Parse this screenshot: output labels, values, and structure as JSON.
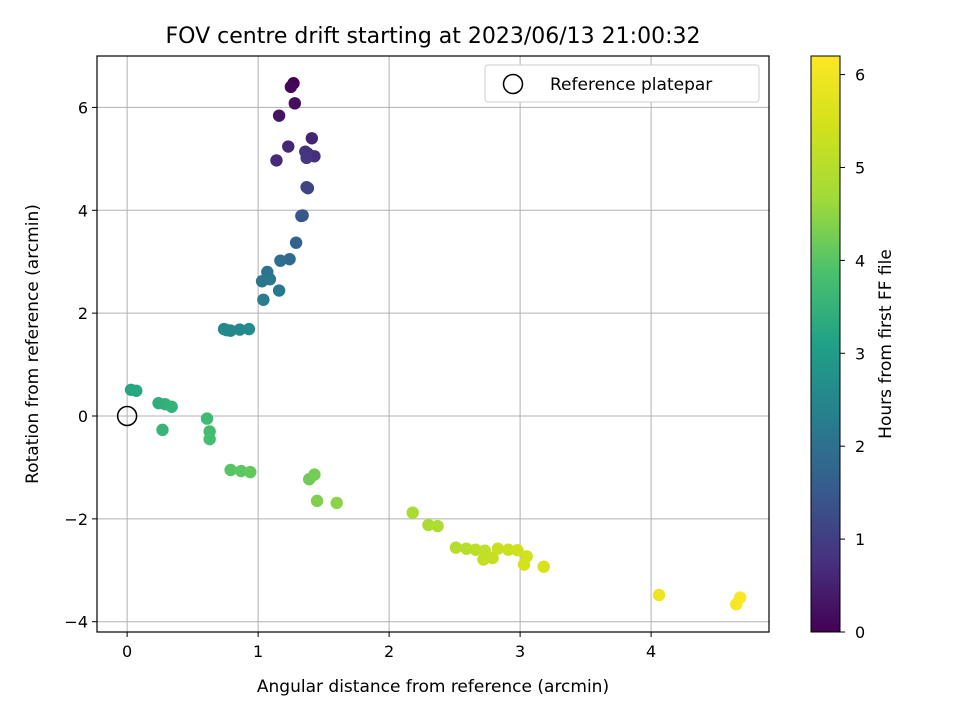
{
  "chart_data": {
    "type": "scatter",
    "title": "FOV centre drift starting at 2023/06/13 21:00:32",
    "xlabel": "Angular distance from reference (arcmin)",
    "ylabel": "Rotation from reference (arcmin)",
    "xlim": [
      -0.23,
      4.9
    ],
    "ylim": [
      -4.2,
      7.0
    ],
    "xticks": [
      0,
      1,
      2,
      3,
      4
    ],
    "yticks": [
      -4,
      -2,
      0,
      2,
      4,
      6
    ],
    "xtick_labels": [
      "0",
      "1",
      "2",
      "3",
      "4"
    ],
    "ytick_labels": [
      "−4",
      "−2",
      "0",
      "2",
      "4",
      "6"
    ],
    "grid": true,
    "legend": {
      "position": "top-right",
      "entries": [
        "Reference platepar"
      ]
    },
    "reference_point": {
      "x": 0,
      "y": 0,
      "label": "Reference platepar"
    },
    "colorbar": {
      "label": "Hours from first FF file",
      "colormap": "viridis",
      "range": [
        0,
        6.2
      ],
      "ticks": [
        0,
        1,
        2,
        3,
        4,
        5,
        6
      ],
      "tick_labels": [
        "0",
        "1",
        "2",
        "3",
        "4",
        "5",
        "6"
      ]
    },
    "points": [
      {
        "x": 1.27,
        "y": 6.47,
        "h": 0.0
      },
      {
        "x": 1.25,
        "y": 6.4,
        "h": 0.1
      },
      {
        "x": 1.28,
        "y": 6.08,
        "h": 0.2
      },
      {
        "x": 1.16,
        "y": 5.84,
        "h": 0.3
      },
      {
        "x": 1.38,
        "y": 5.1,
        "h": 0.45
      },
      {
        "x": 1.41,
        "y": 5.4,
        "h": 0.55
      },
      {
        "x": 1.23,
        "y": 5.24,
        "h": 0.6
      },
      {
        "x": 1.14,
        "y": 4.97,
        "h": 0.65
      },
      {
        "x": 1.43,
        "y": 5.05,
        "h": 0.75
      },
      {
        "x": 1.36,
        "y": 5.14,
        "h": 0.8
      },
      {
        "x": 1.37,
        "y": 5.02,
        "h": 0.85
      },
      {
        "x": 1.38,
        "y": 4.43,
        "h": 1.0
      },
      {
        "x": 1.37,
        "y": 4.45,
        "h": 1.1
      },
      {
        "x": 1.33,
        "y": 3.89,
        "h": 1.35
      },
      {
        "x": 1.34,
        "y": 3.9,
        "h": 1.45
      },
      {
        "x": 1.29,
        "y": 3.37,
        "h": 1.7
      },
      {
        "x": 1.24,
        "y": 3.05,
        "h": 1.85
      },
      {
        "x": 1.17,
        "y": 3.02,
        "h": 1.95
      },
      {
        "x": 1.07,
        "y": 2.8,
        "h": 2.05
      },
      {
        "x": 1.03,
        "y": 2.62,
        "h": 2.1
      },
      {
        "x": 1.09,
        "y": 2.66,
        "h": 2.15
      },
      {
        "x": 1.16,
        "y": 2.44,
        "h": 2.2
      },
      {
        "x": 1.04,
        "y": 2.26,
        "h": 2.25
      },
      {
        "x": 0.74,
        "y": 1.69,
        "h": 2.45
      },
      {
        "x": 0.79,
        "y": 1.66,
        "h": 2.5
      },
      {
        "x": 0.86,
        "y": 1.68,
        "h": 2.55
      },
      {
        "x": 0.93,
        "y": 1.69,
        "h": 2.6
      },
      {
        "x": 0.76,
        "y": 1.67,
        "h": 2.55
      },
      {
        "x": 0.03,
        "y": 0.51,
        "h": 3.2
      },
      {
        "x": 0.07,
        "y": 0.49,
        "h": 3.25
      },
      {
        "x": 0.24,
        "y": 0.25,
        "h": 3.4
      },
      {
        "x": 0.29,
        "y": 0.23,
        "h": 3.45
      },
      {
        "x": 0.34,
        "y": 0.18,
        "h": 3.5
      },
      {
        "x": 0.27,
        "y": -0.27,
        "h": 3.55
      },
      {
        "x": 0.61,
        "y": -0.05,
        "h": 3.7
      },
      {
        "x": 0.63,
        "y": -0.3,
        "h": 3.75
      },
      {
        "x": 0.63,
        "y": -0.45,
        "h": 3.8
      },
      {
        "x": 0.79,
        "y": -1.05,
        "h": 4.0
      },
      {
        "x": 0.87,
        "y": -1.07,
        "h": 4.05
      },
      {
        "x": 0.94,
        "y": -1.09,
        "h": 4.1
      },
      {
        "x": 1.39,
        "y": -1.23,
        "h": 4.2
      },
      {
        "x": 1.43,
        "y": -1.14,
        "h": 4.25
      },
      {
        "x": 1.45,
        "y": -1.65,
        "h": 4.35
      },
      {
        "x": 1.6,
        "y": -1.69,
        "h": 4.45
      },
      {
        "x": 2.18,
        "y": -1.88,
        "h": 4.8
      },
      {
        "x": 2.3,
        "y": -2.12,
        "h": 4.85
      },
      {
        "x": 2.37,
        "y": -2.14,
        "h": 4.9
      },
      {
        "x": 2.51,
        "y": -2.56,
        "h": 5.0
      },
      {
        "x": 2.59,
        "y": -2.58,
        "h": 5.05
      },
      {
        "x": 2.66,
        "y": -2.6,
        "h": 5.1
      },
      {
        "x": 2.73,
        "y": -2.62,
        "h": 5.15
      },
      {
        "x": 2.72,
        "y": -2.79,
        "h": 5.2
      },
      {
        "x": 2.79,
        "y": -2.76,
        "h": 5.25
      },
      {
        "x": 2.83,
        "y": -2.58,
        "h": 5.3
      },
      {
        "x": 2.91,
        "y": -2.6,
        "h": 5.35
      },
      {
        "x": 2.98,
        "y": -2.61,
        "h": 5.4
      },
      {
        "x": 3.05,
        "y": -2.73,
        "h": 5.45
      },
      {
        "x": 3.03,
        "y": -2.89,
        "h": 5.5
      },
      {
        "x": 3.18,
        "y": -2.93,
        "h": 5.55
      },
      {
        "x": 4.06,
        "y": -3.48,
        "h": 5.95
      },
      {
        "x": 4.65,
        "y": -3.66,
        "h": 6.1
      },
      {
        "x": 4.68,
        "y": -3.53,
        "h": 6.15
      }
    ]
  }
}
